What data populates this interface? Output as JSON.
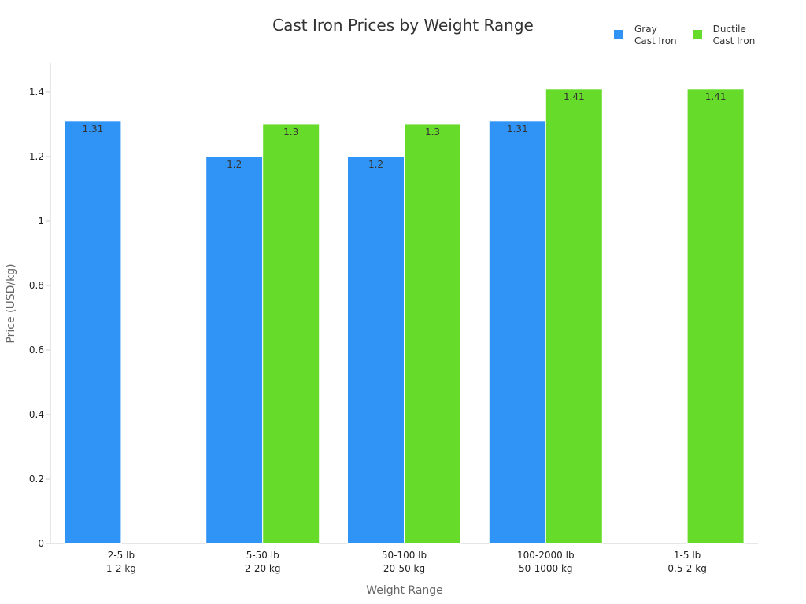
{
  "chart_data": {
    "type": "bar",
    "title": "Cast Iron Prices by Weight Range",
    "xlabel": "Weight Range",
    "ylabel": "Price (USD/kg)",
    "ylim": [
      0,
      1.49
    ],
    "yticks": [
      "0",
      "0.2",
      "0.4",
      "0.6",
      "0.8",
      "1",
      "1.2",
      "1.4"
    ],
    "categories": [
      {
        "line1": "2-5 lb",
        "line2": "1-2 kg"
      },
      {
        "line1": "5-50 lb",
        "line2": "2-20 kg"
      },
      {
        "line1": "50-100 lb",
        "line2": "20-50 kg"
      },
      {
        "line1": "100-2000 lb",
        "line2": "50-1000 kg"
      },
      {
        "line1": "1-5 lb",
        "line2": "0.5-2 kg"
      }
    ],
    "series": [
      {
        "name": "Gray\nCast Iron",
        "color": "#3093F6",
        "values": [
          1.31,
          1.2,
          1.2,
          1.31,
          null
        ],
        "labels": [
          "1.31",
          "1.2",
          "1.2",
          "1.31",
          null
        ]
      },
      {
        "name": "Ductile\nCast Iron",
        "color": "#66DB2A",
        "values": [
          null,
          1.3,
          1.3,
          1.41,
          1.41
        ],
        "labels": [
          null,
          "1.3",
          "1.3",
          "1.41",
          "1.41"
        ]
      }
    ],
    "grid": false,
    "legend_position": "top-right"
  }
}
